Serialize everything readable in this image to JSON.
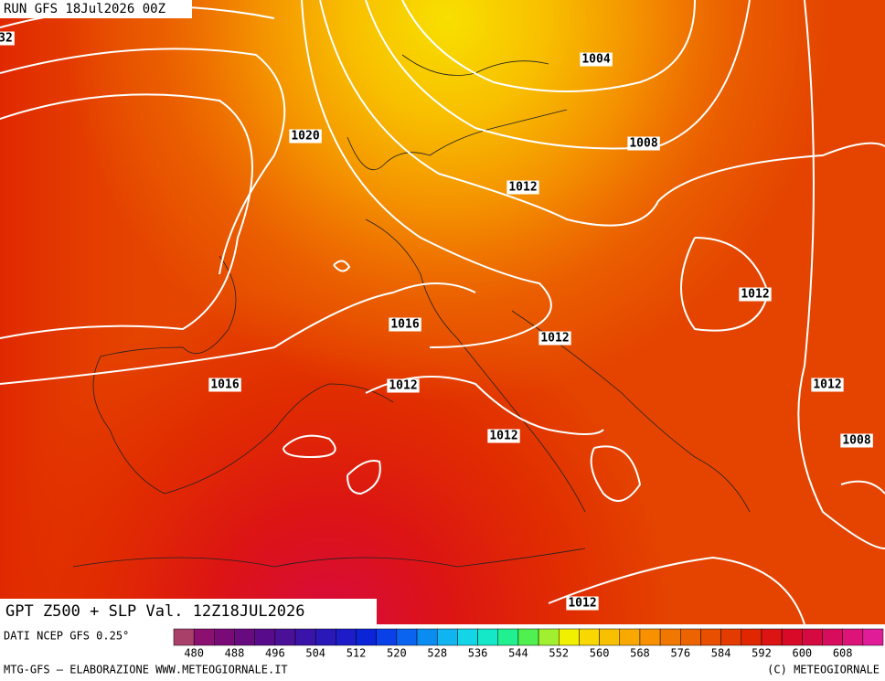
{
  "header": {
    "run": "RUN GFS 18Jul2026 00Z"
  },
  "title": "GPT Z500 + SLP Val. 12Z18JUL2026",
  "isobar_labels": [
    "32",
    "1004",
    "1020",
    "1008",
    "1012",
    "1012",
    "1016",
    "1012",
    "1016",
    "1012",
    "1012",
    "1012",
    "1008",
    "1012"
  ],
  "footer": {
    "source": "DATI NCEP GFS 0.25°",
    "credit": "MTG-GFS — ELABORAZIONE WWW.METEOGIORNALE.IT",
    "copyright": "(C) METEOGIORNALE"
  },
  "colorbar": {
    "colors": [
      "#a8406a",
      "#8c1070",
      "#7a0a78",
      "#680a80",
      "#580c8c",
      "#4a1098",
      "#3a14a8",
      "#2a18b8",
      "#1c1cc8",
      "#0c24d8",
      "#0a40e8",
      "#0a64f0",
      "#0a8cf0",
      "#10b4f0",
      "#14d4e8",
      "#14e8c8",
      "#20f090",
      "#50f050",
      "#a0f030",
      "#f0f000",
      "#f8d800",
      "#f8c000",
      "#f8a800",
      "#f89000",
      "#f07800",
      "#ec6400",
      "#e85000",
      "#e43c00",
      "#e02800",
      "#dc1414",
      "#d80a28",
      "#d40a40",
      "#d80c5c",
      "#dc1478",
      "#e01c98"
    ],
    "labels": [
      480,
      488,
      496,
      504,
      512,
      520,
      528,
      536,
      544,
      552,
      560,
      568,
      576,
      584,
      592,
      600,
      608
    ]
  }
}
